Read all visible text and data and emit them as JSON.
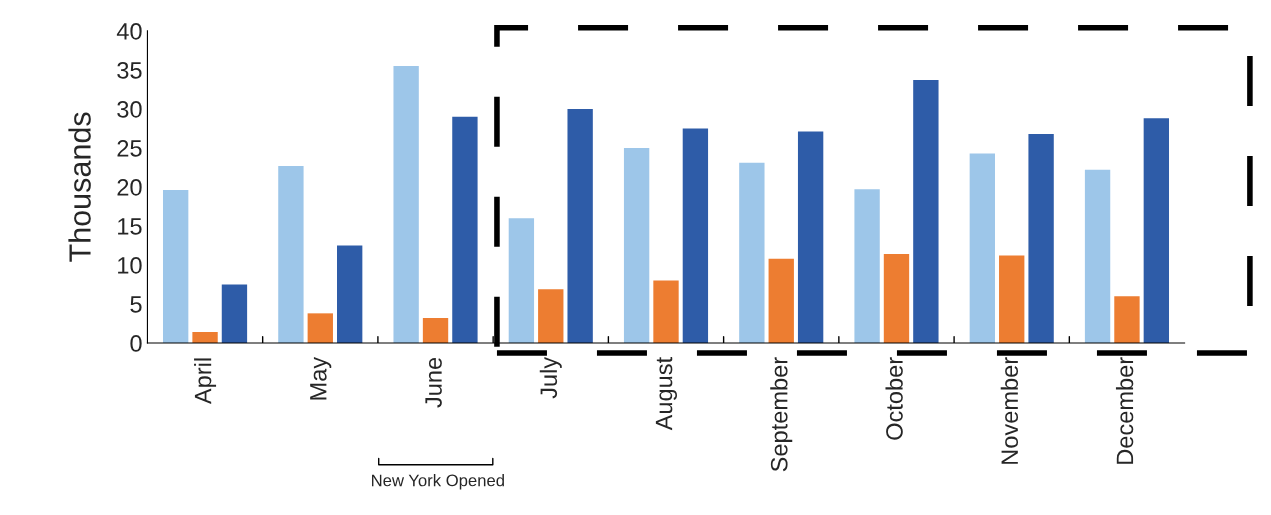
{
  "chart_data": {
    "type": "bar",
    "ylabel": "Thousands",
    "categories": [
      "April",
      "May",
      "June",
      "July",
      "August",
      "September",
      "October",
      "November",
      "December"
    ],
    "series": [
      {
        "color": "#9dc6e9",
        "values": [
          19.6,
          22.7,
          35.5,
          16.0,
          25.0,
          23.1,
          19.7,
          24.3,
          22.2
        ]
      },
      {
        "color": "#ed7d31",
        "values": [
          1.4,
          3.8,
          3.2,
          6.9,
          8.0,
          10.8,
          11.4,
          11.2,
          6.0
        ]
      },
      {
        "color": "#2e5ca8",
        "values": [
          7.5,
          12.5,
          29.0,
          30.0,
          27.5,
          27.1,
          33.7,
          26.8,
          28.8
        ]
      }
    ],
    "ylim": [
      0,
      40
    ],
    "yticks": [
      0,
      5,
      10,
      15,
      20,
      25,
      30,
      35,
      40
    ],
    "grid": false,
    "legend": false,
    "annotations": [
      "New York Opened"
    ]
  }
}
